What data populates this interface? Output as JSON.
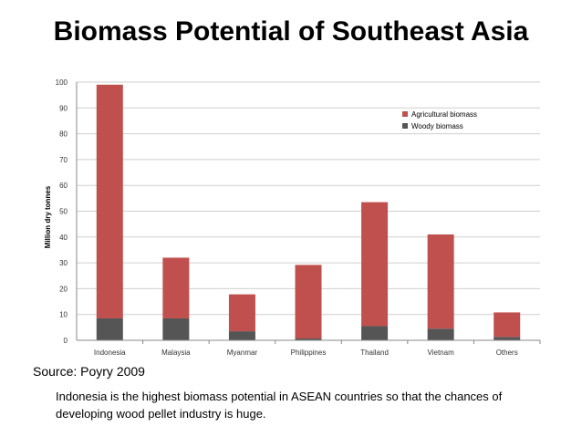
{
  "slide": {
    "title": "Biomass Potential of Southeast Asia",
    "source": "Source: Poyry 2009",
    "caption": "Indonesia is the highest biomass potential in ASEAN countries so that the chances of developing wood pellet industry is huge."
  },
  "chart_data": {
    "type": "bar",
    "stacked": true,
    "categories": [
      "Indonesia",
      "Malaysia",
      "Myanmar",
      "Philippines",
      "Thailand",
      "Vietnam",
      "Others"
    ],
    "series": [
      {
        "name": "Woody biomass",
        "color": "#555555",
        "values": [
          8.5,
          8.5,
          3.5,
          0.7,
          5.5,
          4.5,
          1.3
        ]
      },
      {
        "name": "Agricultural biomass",
        "color": "#c0504d",
        "values": [
          90.5,
          23.5,
          14.3,
          28.5,
          48,
          36.5,
          9.5
        ]
      }
    ],
    "ylabel": "Million dry tonnes",
    "ylim": [
      0,
      100
    ],
    "yticks": [
      0,
      10,
      20,
      30,
      40,
      50,
      60,
      70,
      80,
      90,
      100
    ],
    "grid": true,
    "legend_position": "top-right"
  }
}
